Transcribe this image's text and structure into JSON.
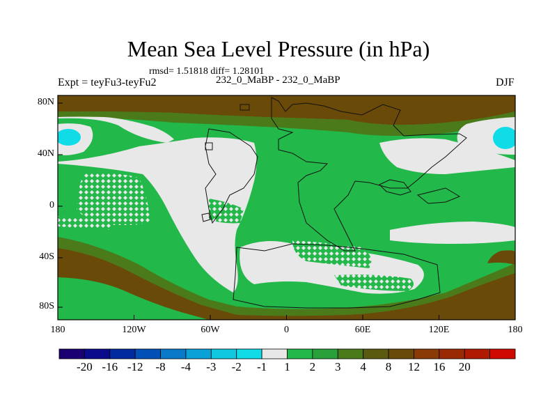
{
  "title": "Mean Sea Level Pressure (in hPa)",
  "stats": "rmsd= 1.51818 diff= 1.28101",
  "experiment": "Expt = teyFu3-teyFu2",
  "runs": "232_0_MaBP - 232_0_MaBP",
  "season": "DJF",
  "lat_labels": [
    "80N",
    "40N",
    "0",
    "40S",
    "80S"
  ],
  "lon_labels": [
    "180",
    "120W",
    "60W",
    "0",
    "60E",
    "120E",
    "180"
  ],
  "colorbar": {
    "colors": [
      "#1a0070",
      "#0a0a8c",
      "#002aa0",
      "#0050b8",
      "#0a78c8",
      "#0aa0d8",
      "#10c8e0",
      "#10dce8",
      "#e8e8e8",
      "#22b84a",
      "#2aa03a",
      "#4a7a1a",
      "#5a5a10",
      "#6a4a08",
      "#8a3a06",
      "#9a2a04",
      "#b01a02",
      "#d00a00"
    ],
    "labels": [
      "-20",
      "-16",
      "-12",
      "-8",
      "-4",
      "-3",
      "-2",
      "-1",
      "1",
      "2",
      "3",
      "4",
      "8",
      "12",
      "16",
      "20"
    ]
  },
  "field_colors": {
    "light": "#e8e8e8",
    "green": "#22b84a",
    "olive": "#4a7a1a",
    "brown": "#6a4a08",
    "cyan": "#10dce8"
  }
}
